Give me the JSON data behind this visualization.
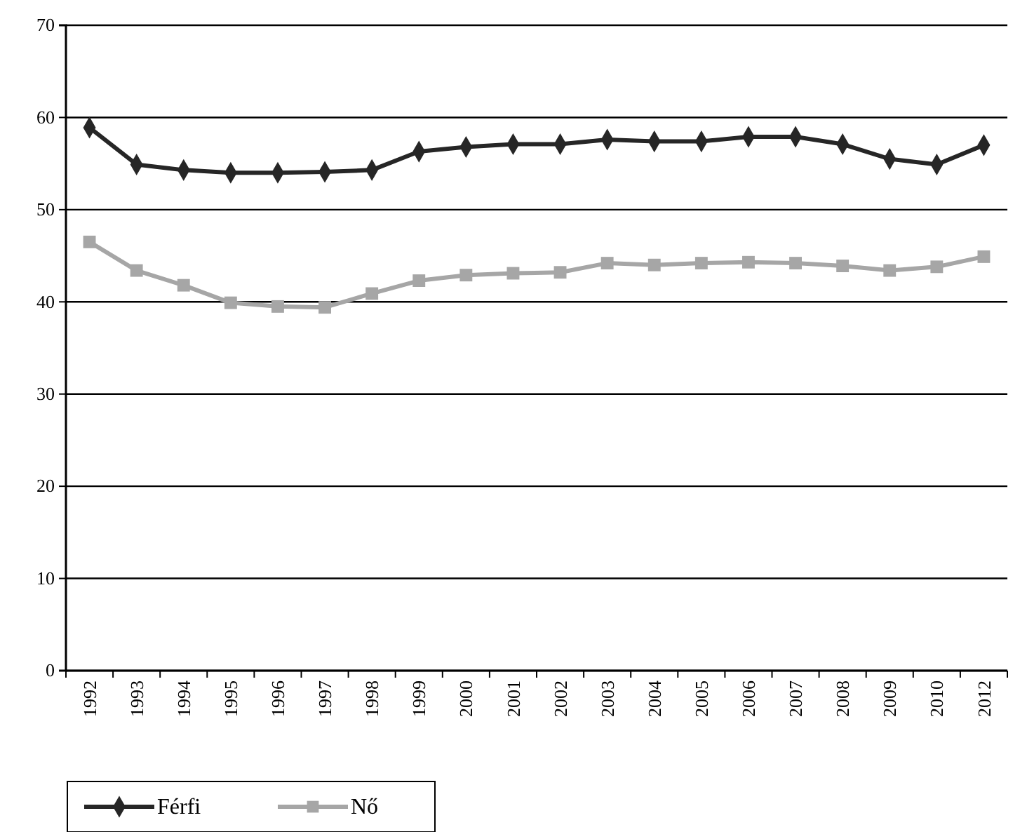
{
  "chart_data": {
    "type": "line",
    "categories": [
      "1992",
      "1993",
      "1994",
      "1995",
      "1996",
      "1997",
      "1998",
      "1999",
      "2000",
      "2001",
      "2002",
      "2003",
      "2004",
      "2005",
      "2006",
      "2007",
      "2008",
      "2009",
      "2010",
      "2012"
    ],
    "series": [
      {
        "name": "Férfi",
        "color": "#262626",
        "marker": "diamond",
        "values": [
          58.9,
          54.9,
          54.3,
          54.0,
          54.0,
          54.1,
          54.3,
          56.3,
          56.8,
          57.1,
          57.1,
          57.6,
          57.4,
          57.4,
          57.9,
          57.9,
          57.1,
          55.5,
          54.9,
          57.0
        ]
      },
      {
        "name": "Nő",
        "color": "#a6a6a6",
        "marker": "square",
        "values": [
          46.5,
          43.4,
          41.8,
          39.9,
          39.5,
          39.4,
          40.9,
          42.3,
          42.9,
          43.1,
          43.2,
          44.2,
          44.0,
          44.2,
          44.3,
          44.2,
          43.9,
          43.4,
          43.8,
          44.9
        ]
      }
    ],
    "ylim": [
      0,
      70
    ],
    "yticks": [
      0,
      10,
      20,
      30,
      40,
      50,
      60,
      70
    ],
    "grid": "y",
    "legend": "bottom left",
    "line_style": "solid"
  }
}
